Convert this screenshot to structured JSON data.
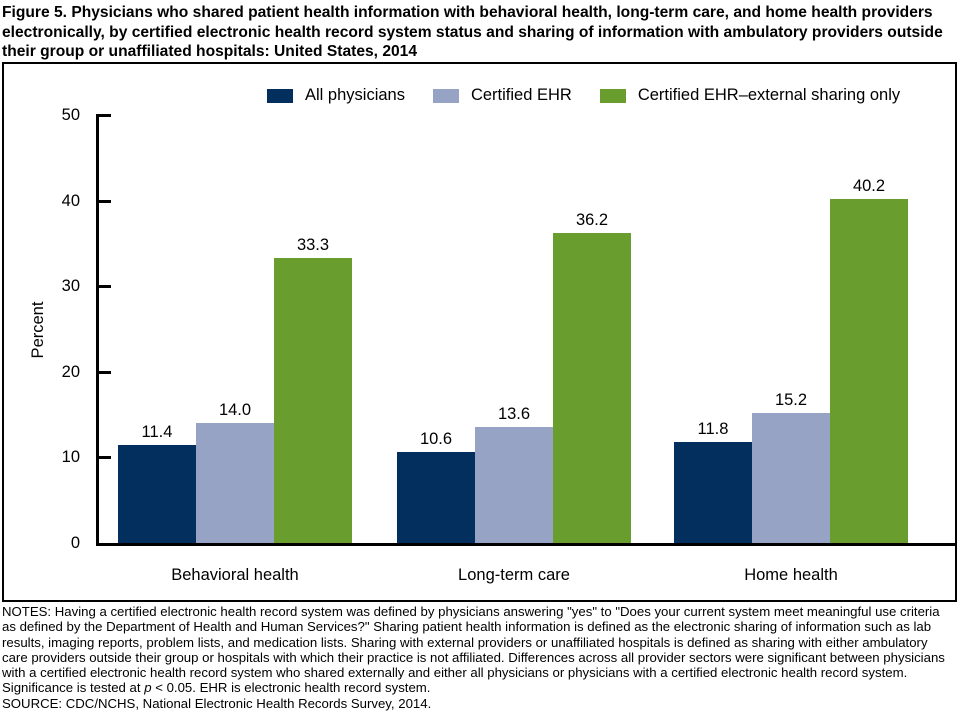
{
  "figure": {
    "title": "Figure 5. Physicians who shared patient health information with behavioral health, long-term care, and home health providers electronically, by certified electronic health record system status and sharing of information with ambulatory providers outside their group or unaffiliated hospitals: United States, 2014",
    "notes_before_p": "NOTES: Having a certified electronic health record system was defined by physicians answering \"yes\" to \"Does your current system meet meaningful use criteria as defined by the Department of Health and Human Services?\" Sharing patient health information is defined as the electronic sharing of information such as lab results, imaging reports, problem lists, and medication lists. Sharing with external providers or unaffiliated hospitals is defined as sharing with either ambulatory care providers outside their group or hospitals with which their practice is not affiliated. Differences across all provider sectors were significant between physicians with a certified electronic health record system who shared externally and either all physicians or physicians with a certified electronic health record system. Significance is tested at ",
    "notes_italic": "p",
    "notes_after_p": " < 0.05. EHR is electronic health record system.",
    "source": "SOURCE: CDC/NCHS, National Electronic Health Records Survey, 2014."
  },
  "chart_data": {
    "type": "bar",
    "categories": [
      "Behavioral health",
      "Long-term care",
      "Home health"
    ],
    "series": [
      {
        "name": "All physicians",
        "color": "#032f5e",
        "values": [
          11.4,
          10.6,
          11.8
        ]
      },
      {
        "name": "Certified EHR",
        "color": "#96a3c4",
        "values": [
          14.0,
          13.6,
          15.2
        ]
      },
      {
        "name": "Certified EHR–external sharing only",
        "color": "#699e2f",
        "values": [
          33.3,
          36.2,
          40.2
        ]
      }
    ],
    "ylabel": "Percent",
    "ylim": [
      0,
      50
    ],
    "yticks": [
      0,
      10,
      20,
      30,
      40,
      50
    ],
    "grid": false,
    "legend_position": "top",
    "value_labels": true
  }
}
